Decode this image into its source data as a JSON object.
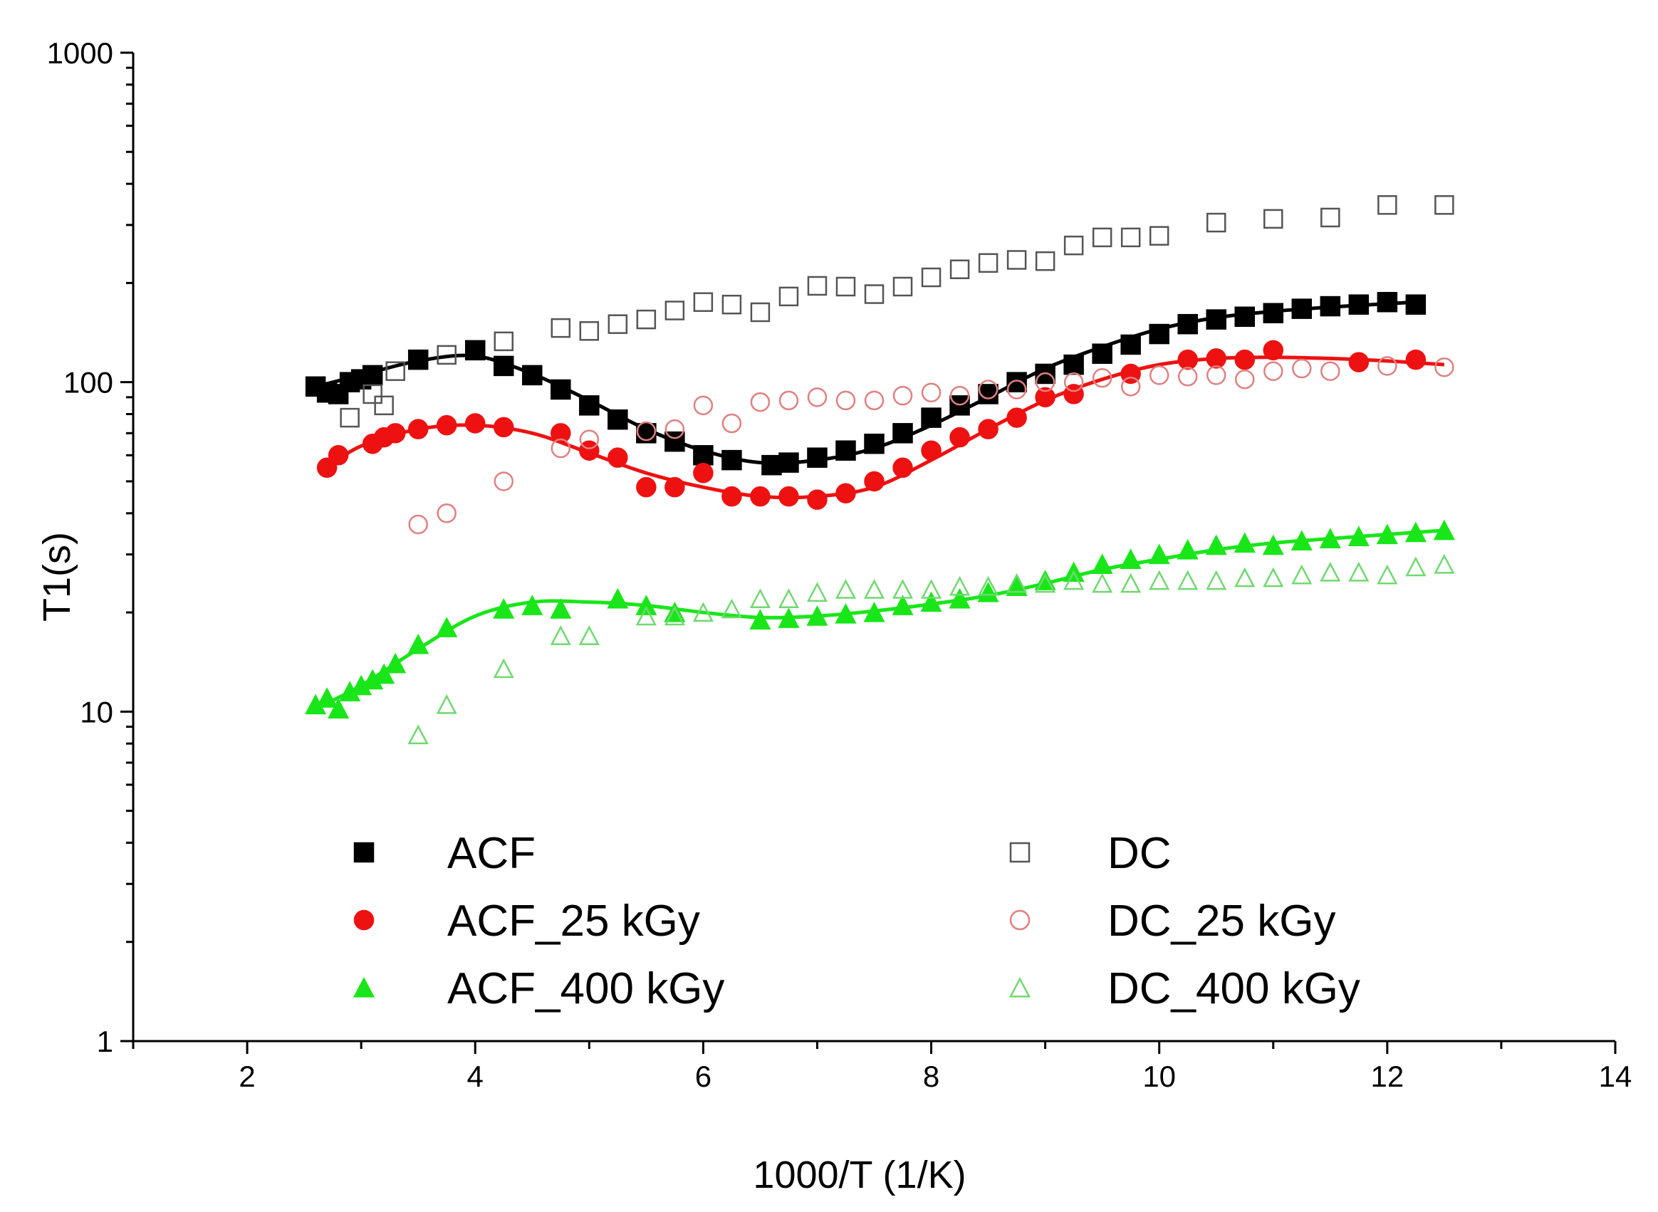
{
  "chart_data": {
    "type": "scatter",
    "title": "",
    "xlabel": "1000/T  (1/K)",
    "ylabel": "T1(s)",
    "xlim": [
      1,
      14
    ],
    "ylim": [
      1,
      1000
    ],
    "yscale": "log",
    "x_ticks": [
      2,
      4,
      6,
      8,
      10,
      12,
      14
    ],
    "x_tick_labels": [
      "2",
      "4",
      "6",
      "8",
      "10",
      "12",
      "14"
    ],
    "y_ticks": [
      1,
      10,
      100,
      1000
    ],
    "y_tick_labels": [
      "1",
      "10",
      "100",
      "1000"
    ],
    "grid": false,
    "legend_position": "lower-center",
    "colors": {
      "black": "#000000",
      "red": "#ee1111",
      "green": "#19e619",
      "red_open": "#e08080",
      "green_open": "#70d870",
      "gray_open": "#555555"
    },
    "series": [
      {
        "name": "ACF",
        "marker": "square",
        "filled": true,
        "color": "#000000",
        "x": [
          2.6,
          2.7,
          2.8,
          2.9,
          3.0,
          3.1,
          3.5,
          4.0,
          4.25,
          4.5,
          4.75,
          5.0,
          5.25,
          5.5,
          5.75,
          6.0,
          6.25,
          6.6,
          6.75,
          7.0,
          7.25,
          7.5,
          7.75,
          8.0,
          8.25,
          8.5,
          8.75,
          9.0,
          9.25,
          9.5,
          9.75,
          10.0,
          10.25,
          10.5,
          10.75,
          11.0,
          11.25,
          11.5,
          11.75,
          12.0,
          12.25
        ],
        "y": [
          97,
          93,
          92,
          100,
          102,
          105,
          117,
          125,
          112,
          105,
          95,
          85,
          77,
          70,
          66,
          60,
          58,
          56,
          57,
          59,
          62,
          65,
          70,
          78,
          85,
          92,
          100,
          106,
          113,
          122,
          130,
          140,
          150,
          155,
          158,
          162,
          167,
          170,
          172,
          175,
          172
        ]
      },
      {
        "name": "ACF_25 kGy",
        "marker": "circle",
        "filled": true,
        "color": "#ee1111",
        "x": [
          2.7,
          2.8,
          3.1,
          3.2,
          3.3,
          3.5,
          3.75,
          4.0,
          4.25,
          4.75,
          5.0,
          5.25,
          5.5,
          5.75,
          6.0,
          6.25,
          6.5,
          6.75,
          7.0,
          7.25,
          7.5,
          7.75,
          8.0,
          8.25,
          8.5,
          8.75,
          9.0,
          9.25,
          9.75,
          10.25,
          10.5,
          10.75,
          11.0,
          11.75,
          12.25
        ],
        "y": [
          55,
          60,
          65,
          68,
          70,
          72,
          74,
          75,
          73,
          70,
          62,
          59,
          48,
          48,
          53,
          45,
          45,
          45,
          44,
          46,
          50,
          55,
          62,
          68,
          72,
          78,
          90,
          92,
          106,
          117,
          118,
          117,
          125,
          115,
          117
        ]
      },
      {
        "name": "ACF_400 kGy",
        "marker": "triangle",
        "filled": true,
        "color": "#19e619",
        "x": [
          2.6,
          2.7,
          2.8,
          2.9,
          3.0,
          3.1,
          3.2,
          3.3,
          3.5,
          3.75,
          4.25,
          4.5,
          4.75,
          5.25,
          5.5,
          5.75,
          6.5,
          6.75,
          7.0,
          7.25,
          7.5,
          7.75,
          8.0,
          8.25,
          8.5,
          8.75,
          9.0,
          9.25,
          9.5,
          9.75,
          10.0,
          10.25,
          10.5,
          10.75,
          11.0,
          11.25,
          11.5,
          11.75,
          12.0,
          12.25,
          12.5
        ],
        "y": [
          10.5,
          11,
          10.2,
          11.5,
          12,
          12.5,
          13,
          14,
          16,
          18,
          20.5,
          21,
          20.5,
          22,
          21,
          20,
          19,
          19.2,
          19.5,
          19.8,
          20,
          21,
          21.5,
          22,
          23,
          24,
          25,
          26.5,
          28,
          29,
          30,
          31,
          32,
          32.5,
          32,
          33,
          33.5,
          34,
          34.5,
          35,
          35.5
        ]
      },
      {
        "name": "DC",
        "marker": "square",
        "filled": false,
        "color": "#555555",
        "x": [
          2.9,
          3.1,
          3.2,
          3.3,
          3.75,
          4.25,
          4.75,
          5.0,
          5.25,
          5.5,
          5.75,
          6.0,
          6.25,
          6.5,
          6.75,
          7.0,
          7.25,
          7.5,
          7.75,
          8.0,
          8.25,
          8.5,
          8.75,
          9.0,
          9.25,
          9.5,
          9.75,
          10.0,
          10.5,
          11.0,
          11.5,
          12.0,
          12.5
        ],
        "y": [
          78,
          92,
          85,
          108,
          121,
          133,
          146,
          143,
          150,
          155,
          165,
          175,
          172,
          163,
          182,
          196,
          195,
          185,
          195,
          208,
          220,
          230,
          235,
          233,
          260,
          275,
          275,
          278,
          305,
          313,
          316,
          345,
          345
        ]
      },
      {
        "name": "DC_25 kGy",
        "marker": "circle",
        "filled": false,
        "color": "#e08080",
        "x": [
          3.5,
          3.75,
          4.25,
          4.75,
          5.0,
          5.5,
          5.75,
          6.0,
          6.25,
          6.5,
          6.75,
          7.0,
          7.25,
          7.5,
          7.75,
          8.0,
          8.25,
          8.5,
          8.75,
          9.0,
          9.25,
          9.5,
          9.75,
          10.0,
          10.25,
          10.5,
          10.75,
          11.0,
          11.25,
          11.5,
          12.0,
          12.5
        ],
        "y": [
          37,
          40,
          50,
          63,
          67,
          71,
          72,
          85,
          75,
          87,
          88,
          90,
          88,
          88,
          91,
          93,
          91,
          95,
          95,
          100,
          100,
          103,
          97,
          105,
          104,
          105,
          102,
          108,
          110,
          108,
          112,
          111
        ]
      },
      {
        "name": "DC_400 kGy",
        "marker": "triangle",
        "filled": false,
        "color": "#70d870",
        "x": [
          3.5,
          3.75,
          4.25,
          4.75,
          5.0,
          5.5,
          5.75,
          6.0,
          6.25,
          6.5,
          6.75,
          7.0,
          7.25,
          7.5,
          7.75,
          8.0,
          8.25,
          8.5,
          8.75,
          9.0,
          9.25,
          9.5,
          9.75,
          10.0,
          10.25,
          10.5,
          10.75,
          11.0,
          11.25,
          11.5,
          11.75,
          12.0,
          12.25,
          12.5
        ],
        "y": [
          8.5,
          10.5,
          13.5,
          17,
          17,
          19.5,
          19.5,
          20,
          20.5,
          22,
          22,
          23,
          23.5,
          23.5,
          23.5,
          23.5,
          24,
          24,
          24.5,
          24.5,
          25,
          24.5,
          24.5,
          25,
          25,
          25,
          25.5,
          25.5,
          26,
          26.5,
          26.5,
          26,
          27.5,
          28
        ]
      }
    ],
    "fit_curves": [
      {
        "series": "ACF",
        "color": "#000000",
        "x": [
          2.6,
          3.0,
          3.5,
          4.0,
          4.5,
          5.0,
          5.5,
          6.0,
          6.5,
          7.0,
          7.5,
          8.0,
          8.5,
          9.0,
          9.5,
          10.0,
          10.5,
          11.0,
          11.5,
          12.0,
          12.25
        ],
        "y": [
          97,
          105,
          116,
          120,
          106,
          88,
          72,
          62,
          57,
          58,
          63,
          74,
          90,
          110,
          128,
          145,
          157,
          164,
          169,
          173,
          175
        ]
      },
      {
        "series": "ACF_25 kGy",
        "color": "#ee1111",
        "x": [
          2.7,
          3.0,
          3.5,
          4.0,
          4.5,
          5.0,
          5.5,
          6.0,
          6.5,
          7.0,
          7.5,
          8.0,
          8.5,
          9.0,
          9.5,
          10.0,
          10.5,
          11.0,
          11.5,
          12.0,
          12.5
        ],
        "y": [
          55,
          64,
          72,
          74,
          70,
          61,
          53,
          48,
          45,
          45,
          48,
          58,
          72,
          88,
          102,
          113,
          118,
          119,
          118,
          116,
          113
        ]
      },
      {
        "series": "ACF_400 kGy",
        "color": "#19e619",
        "x": [
          2.6,
          3.0,
          3.5,
          4.0,
          4.5,
          5.0,
          5.5,
          6.0,
          6.5,
          7.0,
          7.5,
          8.0,
          8.5,
          9.0,
          9.5,
          10.0,
          10.5,
          11.0,
          11.5,
          12.0,
          12.5
        ],
        "y": [
          10.2,
          12,
          15.5,
          19.5,
          21.5,
          21.5,
          21,
          20,
          19.3,
          19.5,
          20.2,
          21.2,
          22.5,
          24.5,
          27,
          29,
          31,
          32.5,
          33.5,
          34.5,
          35.5
        ]
      }
    ]
  }
}
